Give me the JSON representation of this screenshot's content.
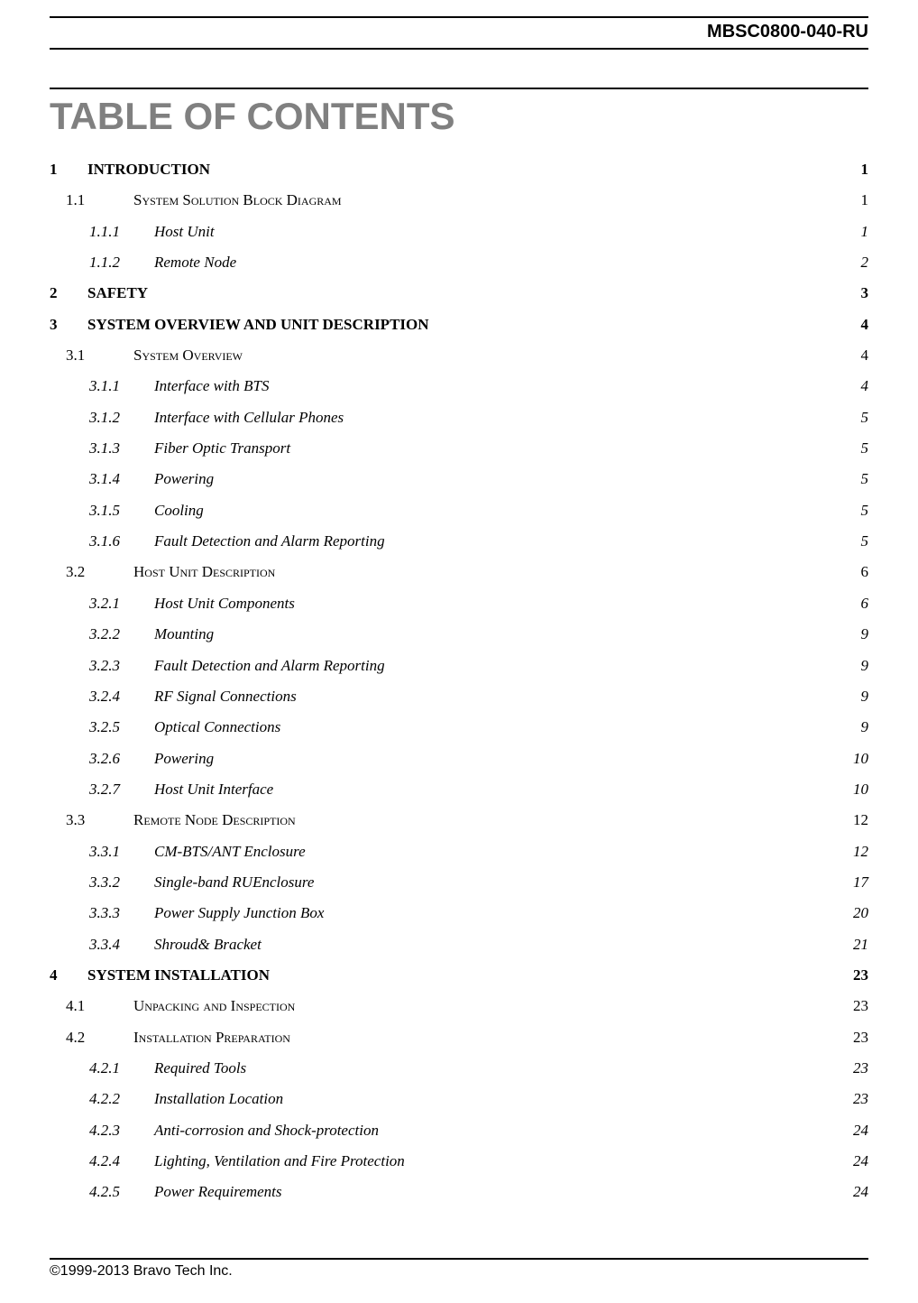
{
  "header": "MBSC0800-040-RU",
  "mainTitle": "TABLE OF CONTENTS",
  "footer": "©1999-2013 Bravo Tech Inc.",
  "entries": [
    {
      "level": 1,
      "num": "1",
      "title": "INTRODUCTION",
      "page": "1"
    },
    {
      "level": 2,
      "num": "1.1",
      "title": "System Solution Block Diagram",
      "page": "1"
    },
    {
      "level": 3,
      "num": "1.1.1",
      "title": "Host Unit",
      "page": "1"
    },
    {
      "level": 3,
      "num": "1.1.2",
      "title": "Remote Node",
      "page": "2"
    },
    {
      "level": 1,
      "num": "2",
      "title": "SAFETY",
      "page": "3"
    },
    {
      "level": 1,
      "num": "3",
      "title": "SYSTEM OVERVIEW AND UNIT DESCRIPTION",
      "page": "4"
    },
    {
      "level": 2,
      "num": "3.1",
      "title": "System Overview",
      "page": "4"
    },
    {
      "level": 3,
      "num": "3.1.1",
      "title": "Interface with BTS",
      "page": "4"
    },
    {
      "level": 3,
      "num": "3.1.2",
      "title": "Interface with Cellular Phones",
      "page": "5"
    },
    {
      "level": 3,
      "num": "3.1.3",
      "title": "Fiber Optic Transport",
      "page": "5"
    },
    {
      "level": 3,
      "num": "3.1.4",
      "title": "Powering",
      "page": "5"
    },
    {
      "level": 3,
      "num": "3.1.5",
      "title": "Cooling",
      "page": "5"
    },
    {
      "level": 3,
      "num": "3.1.6",
      "title": "Fault Detection and Alarm Reporting",
      "page": "5"
    },
    {
      "level": 2,
      "num": "3.2",
      "title": "Host Unit Description",
      "page": "6"
    },
    {
      "level": 3,
      "num": "3.2.1",
      "title": "Host Unit Components",
      "page": "6"
    },
    {
      "level": 3,
      "num": "3.2.2",
      "title": "Mounting",
      "page": "9"
    },
    {
      "level": 3,
      "num": "3.2.3",
      "title": "Fault Detection and Alarm Reporting",
      "page": "9"
    },
    {
      "level": 3,
      "num": "3.2.4",
      "title": "RF Signal Connections",
      "page": "9"
    },
    {
      "level": 3,
      "num": "3.2.5",
      "title": "Optical Connections",
      "page": "9"
    },
    {
      "level": 3,
      "num": "3.2.6",
      "title": "Powering",
      "page": "10"
    },
    {
      "level": 3,
      "num": "3.2.7",
      "title": "Host Unit Interface",
      "page": "10"
    },
    {
      "level": 2,
      "num": "3.3",
      "title": "Remote Node Description",
      "page": "12"
    },
    {
      "level": 3,
      "num": "3.3.1",
      "title": "CM-BTS/ANT Enclosure",
      "page": "12"
    },
    {
      "level": 3,
      "num": "3.3.2",
      "title": "Single-band RUEnclosure",
      "page": "17"
    },
    {
      "level": 3,
      "num": "3.3.3",
      "title": "Power Supply Junction Box",
      "page": "20"
    },
    {
      "level": 3,
      "num": "3.3.4",
      "title": "Shroud& Bracket",
      "page": "21"
    },
    {
      "level": 1,
      "num": "4",
      "title": "SYSTEM INSTALLATION",
      "page": "23"
    },
    {
      "level": 2,
      "num": "4.1",
      "title": "Unpacking and Inspection",
      "page": "23"
    },
    {
      "level": 2,
      "num": "4.2",
      "title": "Installation Preparation",
      "page": "23"
    },
    {
      "level": 3,
      "num": "4.2.1",
      "title": "Required Tools",
      "page": "23"
    },
    {
      "level": 3,
      "num": "4.2.2",
      "title": "Installation Location",
      "page": "23"
    },
    {
      "level": 3,
      "num": "4.2.3",
      "title": "Anti-corrosion and Shock-protection",
      "page": "24"
    },
    {
      "level": 3,
      "num": "4.2.4",
      "title": "Lighting, Ventilation and Fire Protection",
      "page": "24"
    },
    {
      "level": 3,
      "num": "4.2.5",
      "title": "Power Requirements",
      "page": "24"
    }
  ]
}
